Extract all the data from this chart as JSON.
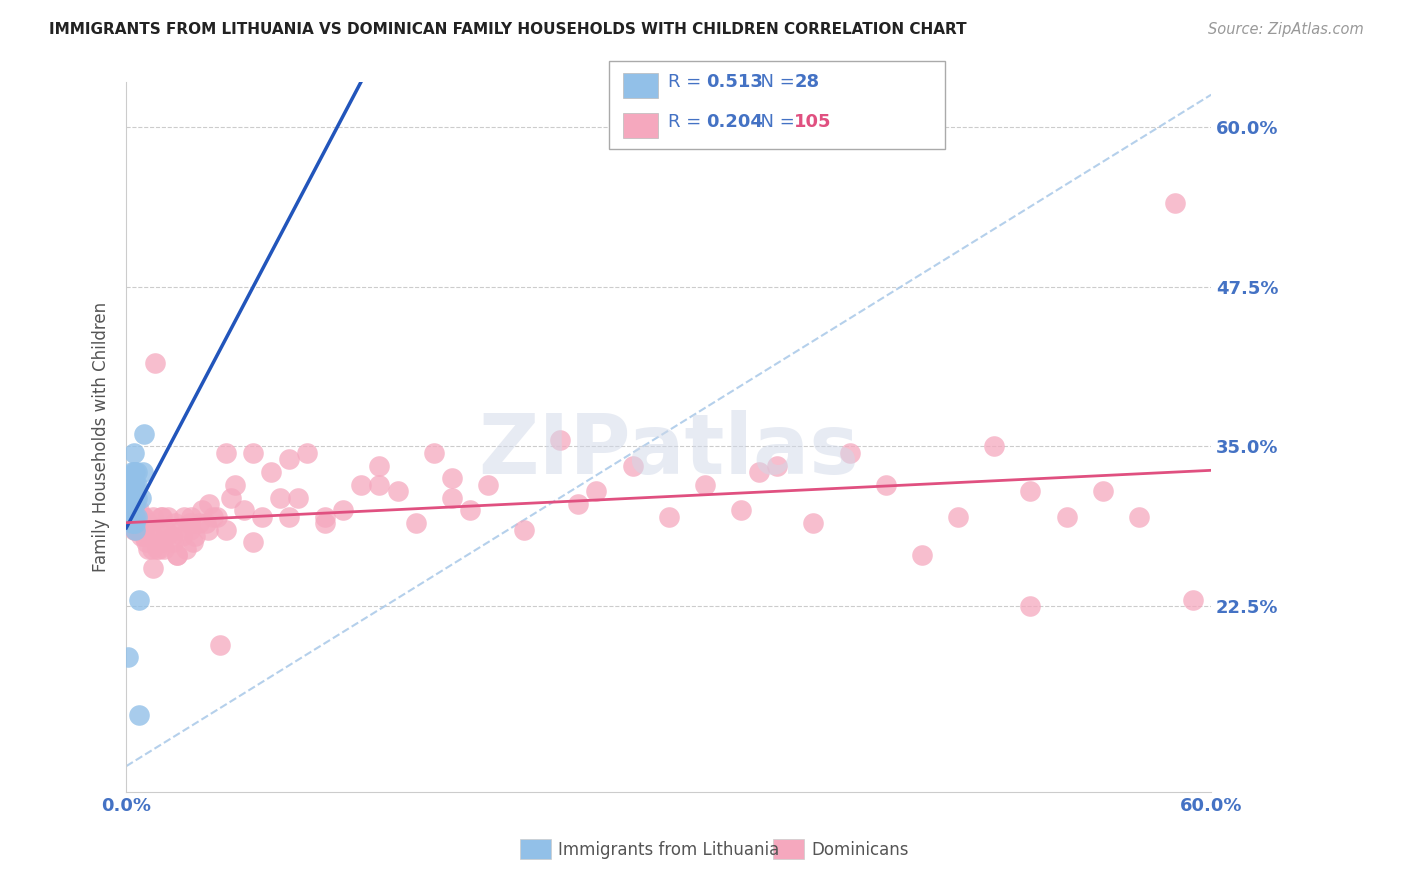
{
  "title": "IMMIGRANTS FROM LITHUANIA VS DOMINICAN FAMILY HOUSEHOLDS WITH CHILDREN CORRELATION CHART",
  "source": "Source: ZipAtlas.com",
  "ylabel": "Family Households with Children",
  "xlim": [
    0.0,
    0.6
  ],
  "ylim": [
    0.08,
    0.635
  ],
  "yticks": [
    0.225,
    0.35,
    0.475,
    0.6
  ],
  "ytick_labels": [
    "22.5%",
    "35.0%",
    "47.5%",
    "60.0%"
  ],
  "xtick_labels": [
    "0.0%",
    "60.0%"
  ],
  "background_color": "#ffffff",
  "grid_color": "#cccccc",
  "title_color": "#222222",
  "axis_label_color": "#555555",
  "legend_text_color": "#4472c4",
  "legend_r_blue": "0.513",
  "legend_n_blue": "28",
  "legend_r_pink": "0.204",
  "legend_n_pink": "105",
  "legend_label_blue": "Immigrants from Lithuania",
  "legend_label_pink": "Dominicans",
  "blue_dot_color": "#92c0e8",
  "pink_dot_color": "#f5a8be",
  "blue_line_color": "#2255bb",
  "pink_line_color": "#e05080",
  "dashed_line_color": "#a8c8e8",
  "blue_x": [
    0.001,
    0.002,
    0.002,
    0.003,
    0.003,
    0.003,
    0.003,
    0.004,
    0.004,
    0.004,
    0.004,
    0.004,
    0.005,
    0.005,
    0.005,
    0.005,
    0.005,
    0.005,
    0.005,
    0.006,
    0.006,
    0.006,
    0.006,
    0.007,
    0.007,
    0.008,
    0.009,
    0.01
  ],
  "blue_y": [
    0.185,
    0.295,
    0.31,
    0.29,
    0.305,
    0.315,
    0.33,
    0.29,
    0.31,
    0.32,
    0.33,
    0.345,
    0.285,
    0.295,
    0.31,
    0.32,
    0.33,
    0.29,
    0.305,
    0.295,
    0.31,
    0.32,
    0.33,
    0.14,
    0.23,
    0.31,
    0.33,
    0.36
  ],
  "pink_x": [
    0.003,
    0.004,
    0.004,
    0.005,
    0.005,
    0.006,
    0.007,
    0.007,
    0.008,
    0.008,
    0.009,
    0.01,
    0.01,
    0.011,
    0.012,
    0.013,
    0.014,
    0.015,
    0.015,
    0.016,
    0.017,
    0.018,
    0.019,
    0.02,
    0.02,
    0.021,
    0.022,
    0.023,
    0.025,
    0.026,
    0.027,
    0.028,
    0.03,
    0.031,
    0.032,
    0.033,
    0.035,
    0.036,
    0.037,
    0.038,
    0.04,
    0.042,
    0.044,
    0.046,
    0.048,
    0.05,
    0.052,
    0.055,
    0.058,
    0.06,
    0.065,
    0.07,
    0.075,
    0.08,
    0.085,
    0.09,
    0.095,
    0.1,
    0.11,
    0.12,
    0.13,
    0.14,
    0.15,
    0.16,
    0.17,
    0.18,
    0.19,
    0.2,
    0.22,
    0.24,
    0.26,
    0.28,
    0.3,
    0.32,
    0.34,
    0.36,
    0.38,
    0.4,
    0.42,
    0.44,
    0.46,
    0.48,
    0.5,
    0.52,
    0.54,
    0.56,
    0.58,
    0.59,
    0.01,
    0.012,
    0.015,
    0.018,
    0.022,
    0.028,
    0.035,
    0.045,
    0.055,
    0.07,
    0.09,
    0.11,
    0.14,
    0.18,
    0.25,
    0.35,
    0.5
  ],
  "pink_y": [
    0.29,
    0.295,
    0.285,
    0.295,
    0.285,
    0.29,
    0.285,
    0.3,
    0.29,
    0.28,
    0.295,
    0.285,
    0.295,
    0.275,
    0.29,
    0.285,
    0.27,
    0.28,
    0.295,
    0.415,
    0.27,
    0.28,
    0.295,
    0.275,
    0.295,
    0.27,
    0.285,
    0.295,
    0.28,
    0.275,
    0.29,
    0.265,
    0.285,
    0.28,
    0.295,
    0.27,
    0.285,
    0.295,
    0.275,
    0.28,
    0.29,
    0.3,
    0.29,
    0.305,
    0.295,
    0.295,
    0.195,
    0.345,
    0.31,
    0.32,
    0.3,
    0.345,
    0.295,
    0.33,
    0.31,
    0.34,
    0.31,
    0.345,
    0.295,
    0.3,
    0.32,
    0.335,
    0.315,
    0.29,
    0.345,
    0.325,
    0.3,
    0.32,
    0.285,
    0.355,
    0.315,
    0.335,
    0.295,
    0.32,
    0.3,
    0.335,
    0.29,
    0.345,
    0.32,
    0.265,
    0.295,
    0.35,
    0.315,
    0.295,
    0.315,
    0.295,
    0.54,
    0.23,
    0.28,
    0.27,
    0.255,
    0.27,
    0.28,
    0.265,
    0.29,
    0.285,
    0.285,
    0.275,
    0.295,
    0.29,
    0.32,
    0.31,
    0.305,
    0.33,
    0.225
  ]
}
